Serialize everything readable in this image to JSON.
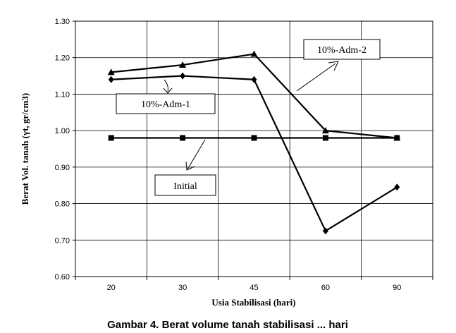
{
  "chart_data": {
    "type": "line",
    "categories": [
      "20",
      "30",
      "45",
      "60",
      "90"
    ],
    "xlabel": "Usia Stabilisasi (hari)",
    "ylabel": "Berat Vol. tanah (γt, gr/cm3)",
    "ylim": [
      0.6,
      1.3
    ],
    "yticks": [
      "0.60",
      "0.70",
      "0.80",
      "0.90",
      "1.00",
      "1.10",
      "1.20",
      "1.30"
    ],
    "grid": true,
    "series": [
      {
        "name": "10%-Adm-2",
        "marker": "triangle",
        "values": [
          1.16,
          1.18,
          1.21,
          1.0,
          0.98
        ]
      },
      {
        "name": "10%-Adm-1",
        "marker": "diamond",
        "values": [
          1.14,
          1.15,
          1.14,
          0.725,
          0.845
        ]
      },
      {
        "name": "Initial",
        "marker": "square",
        "values": [
          0.98,
          0.98,
          0.98,
          0.98,
          0.98
        ]
      }
    ],
    "caption": "Gambar 4. Berat volume tanah stabilisasi ... hari"
  }
}
